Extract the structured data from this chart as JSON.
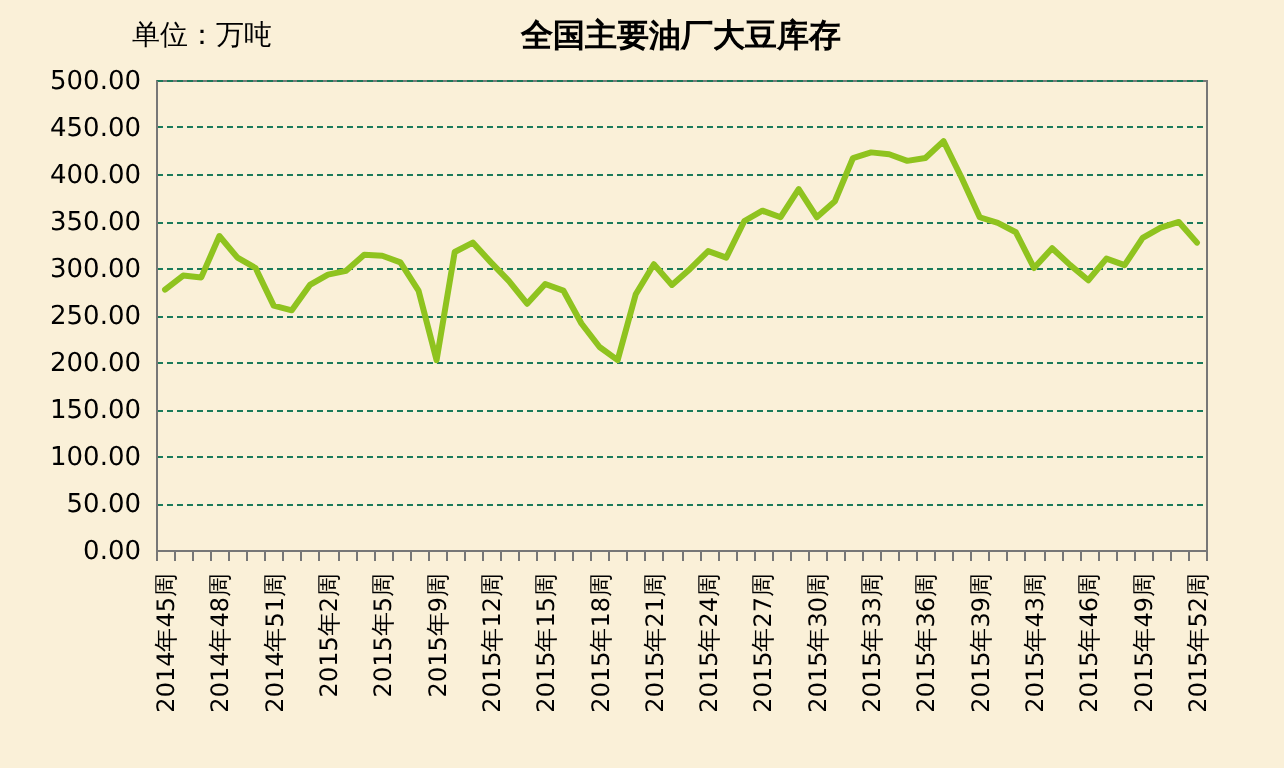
{
  "chart_data": {
    "type": "line",
    "title": "全国主要油厂大豆库存",
    "annotations": [
      "单位：万吨"
    ],
    "categories": [
      "2014年45周",
      null,
      null,
      "2014年48周",
      null,
      null,
      "2014年51周",
      null,
      null,
      "2015年2周",
      null,
      null,
      "2015年5周",
      null,
      null,
      "2015年9周",
      null,
      null,
      "2015年12周",
      null,
      null,
      "2015年15周",
      null,
      null,
      "2015年18周",
      null,
      null,
      "2015年21周",
      null,
      null,
      "2015年24周",
      null,
      null,
      "2015年27周",
      null,
      null,
      "2015年30周",
      null,
      null,
      "2015年33周",
      null,
      null,
      "2015年36周",
      null,
      null,
      "2015年39周",
      null,
      null,
      "2015年43周",
      null,
      null,
      "2015年46周",
      null,
      null,
      "2015年49周",
      null,
      null,
      "2015年52周"
    ],
    "series": [
      {
        "color": "#8fc31f",
        "values": [
          277,
          292,
          290,
          334,
          311,
          300,
          260,
          255,
          282,
          293,
          297,
          314,
          313,
          306,
          276,
          202,
          317,
          327,
          306,
          286,
          262,
          283,
          276,
          241,
          216,
          202,
          272,
          304,
          282,
          299,
          318,
          311,
          350,
          361,
          354,
          384,
          354,
          371,
          417,
          423,
          421,
          414,
          417,
          435,
          396,
          354,
          348,
          338,
          300,
          321,
          303,
          287,
          310,
          303,
          332,
          343,
          349,
          327
        ]
      }
    ],
    "ylim": [
      0,
      500
    ],
    "yticks": [
      {
        "value": 0,
        "label": "0.00"
      },
      {
        "value": 50,
        "label": "50.00"
      },
      {
        "value": 100,
        "label": "100.00"
      },
      {
        "value": 150,
        "label": "150.00"
      },
      {
        "value": 200,
        "label": "200.00"
      },
      {
        "value": 250,
        "label": "250.00"
      },
      {
        "value": 300,
        "label": "300.00"
      },
      {
        "value": 350,
        "label": "350.00"
      },
      {
        "value": 400,
        "label": "400.00"
      },
      {
        "value": 450,
        "label": "450.00"
      },
      {
        "value": 500,
        "label": "500.00"
      }
    ],
    "grid": "y",
    "legend": false,
    "marker": "none",
    "line_style": "solid"
  }
}
